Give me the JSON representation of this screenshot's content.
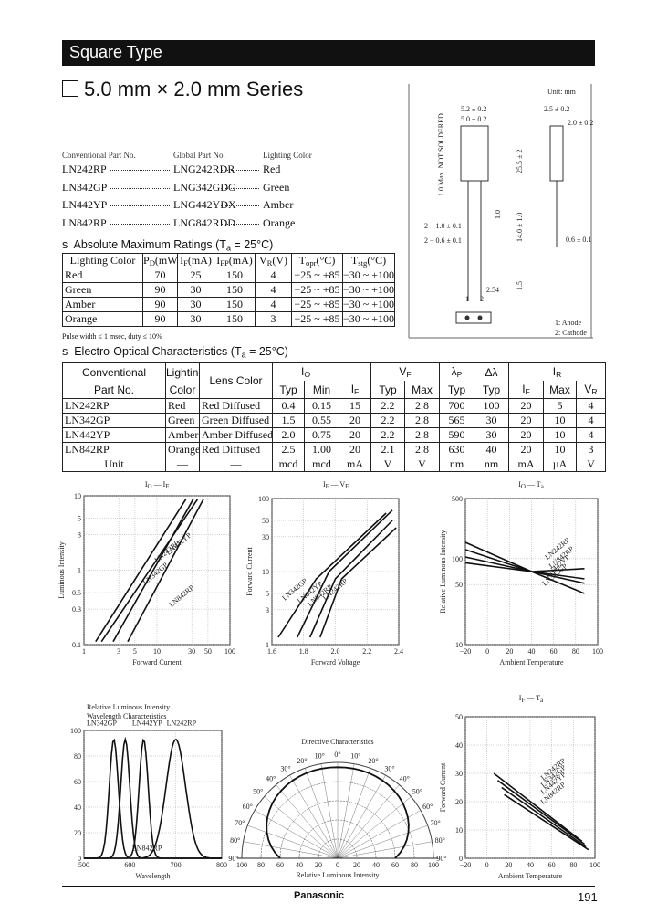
{
  "header": {
    "title": "Square Type"
  },
  "series_title": "5.0 mm × 2.0 mm Series",
  "part_list": {
    "headers": [
      "Conventional Part No.",
      "Global Part No.",
      "Lighting Color"
    ],
    "rows": [
      [
        "LN242RP",
        "LNG242RDR",
        "Red"
      ],
      [
        "LN342GP",
        "LNG342GDG",
        "Green"
      ],
      [
        "LN442YP",
        "LNG442YDX",
        "Amber"
      ],
      [
        "LN842RP",
        "LNG842RDD",
        "Orange"
      ]
    ]
  },
  "absolute_max": {
    "title": [
      {
        "text": "Absolute Maximum Ratings (T"
      },
      {
        "sub": "a"
      },
      {
        "text": " = 25°C)"
      }
    ],
    "headers": [
      [
        {
          "text": "Lighting Color"
        }
      ],
      [
        {
          "text": "P"
        },
        {
          "sub": "D"
        },
        {
          "text": "(mW)"
        }
      ],
      [
        {
          "text": "I"
        },
        {
          "sub": "F"
        },
        {
          "text": "(mA)"
        }
      ],
      [
        {
          "text": "I"
        },
        {
          "sub": "FP"
        },
        {
          "text": "(mA)"
        }
      ],
      [
        {
          "text": "V"
        },
        {
          "sub": "R"
        },
        {
          "text": "(V)"
        }
      ],
      [
        {
          "text": "T"
        },
        {
          "sub": "opr"
        },
        {
          "text": "(°C)"
        }
      ],
      [
        {
          "text": "T"
        },
        {
          "sub": "stg"
        },
        {
          "text": "(°C)"
        }
      ]
    ],
    "rows": [
      [
        "Red",
        "70",
        "25",
        "150",
        "4",
        "−25 ~ +85",
        "−30 ~ +100"
      ],
      [
        "Green",
        "90",
        "30",
        "150",
        "4",
        "−25 ~ +85",
        "−30 ~ +100"
      ],
      [
        "Amber",
        "90",
        "30",
        "150",
        "4",
        "−25 ~ +85",
        "−30 ~ +100"
      ],
      [
        "Orange",
        "90",
        "30",
        "150",
        "3",
        "−25 ~ +85",
        "−30 ~ +100"
      ]
    ],
    "note": "Pulse width ≤ 1 msec, duty ≤ 10%"
  },
  "electro_optical": {
    "title": [
      {
        "text": "Electro-Optical Characteristics (T"
      },
      {
        "sub": "a"
      },
      {
        "text": " = 25°C)"
      }
    ],
    "header_top": [
      [
        {
          "text": "Conventional"
        }
      ],
      [
        {
          "text": "Lighting"
        }
      ],
      [
        {
          "text": "Lens Color"
        }
      ],
      [
        {
          "text": "I"
        },
        {
          "sub": "O"
        }
      ],
      [
        {
          "text": "V"
        },
        {
          "sub": "F"
        }
      ],
      [
        {
          "text": "λ"
        },
        {
          "sub": "P"
        }
      ],
      [
        {
          "text": "Δλ"
        }
      ],
      [
        {
          "text": "I"
        },
        {
          "sub": "R"
        }
      ]
    ],
    "header_sub": [
      [
        {
          "text": "Part No."
        }
      ],
      [
        {
          "text": "Color"
        }
      ],
      [
        {
          "text": "Typ"
        }
      ],
      [
        {
          "text": "Min"
        }
      ],
      [
        {
          "text": "I"
        },
        {
          "sub": "F"
        }
      ],
      [
        {
          "text": "Typ"
        }
      ],
      [
        {
          "text": "Max"
        }
      ],
      [
        {
          "text": "Typ"
        }
      ],
      [
        {
          "text": "Typ"
        }
      ],
      [
        {
          "text": "I"
        },
        {
          "sub": "F"
        }
      ],
      [
        {
          "text": "Max"
        }
      ],
      [
        {
          "text": "V"
        },
        {
          "sub": "R"
        }
      ]
    ],
    "rows": [
      [
        "LN242RP",
        "Red",
        "Red Diffused",
        "0.4",
        "0.15",
        "15",
        "2.2",
        "2.8",
        "700",
        "100",
        "20",
        "5",
        "4"
      ],
      [
        "LN342GP",
        "Green",
        "Green Diffused",
        "1.5",
        "0.55",
        "20",
        "2.2",
        "2.8",
        "565",
        "30",
        "20",
        "10",
        "4"
      ],
      [
        "LN442YP",
        "Amber",
        "Amber Diffused",
        "2.0",
        "0.75",
        "20",
        "2.2",
        "2.8",
        "590",
        "30",
        "20",
        "10",
        "4"
      ],
      [
        "LN842RP",
        "Orange",
        "Red Diffused",
        "2.5",
        "1.00",
        "20",
        "2.1",
        "2.8",
        "630",
        "40",
        "20",
        "10",
        "3"
      ]
    ],
    "unit_row": [
      "Unit",
      "—",
      "—",
      "mcd",
      "mcd",
      "mA",
      "V",
      "V",
      "nm",
      "nm",
      "mA",
      "µA",
      "V"
    ]
  },
  "drawing": {
    "unit": "Unit: mm",
    "dims": [
      "5.2 ± 0.2",
      "5.0 ± 0.2",
      "2.5 ± 0.2",
      "2.0 ± 0.2",
      "1.0 Max. NOT SOLDERED",
      "25.5 ± 2",
      "14.0 ± 1.0",
      "1.0",
      "2 − 1.0 ± 0.1",
      "2 − 0.6 ± 0.1",
      "0.6 ± 0.1",
      "2.54",
      "1.5"
    ],
    "pins": [
      "1",
      "2"
    ],
    "legend": [
      "1: Anode",
      "2: Cathode"
    ]
  },
  "graphs": [
    {
      "title": [
        {
          "text": "I"
        },
        {
          "sub": "O"
        },
        {
          "text": " — I"
        },
        {
          "sub": "F"
        }
      ],
      "x_label": "Forward Current",
      "y_label": "Luminous Intensity",
      "xticks": [
        "1",
        "3",
        "5",
        "10",
        "30",
        "50",
        "100"
      ],
      "yticks": [
        "0.1",
        "0.3",
        "0.5",
        "1",
        "3",
        "5",
        "10"
      ],
      "xscale": "log",
      "yscale": "log",
      "curve_labels": [
        "LN242RP",
        "LN342GP",
        "LN442YP",
        "LN842RP"
      ]
    },
    {
      "title": [
        {
          "text": "I"
        },
        {
          "sub": "F"
        },
        {
          "text": " — V"
        },
        {
          "sub": "F"
        }
      ],
      "x_label": "Forward Voltage",
      "y_label": "Forward Current",
      "xticks": [
        "1.6",
        "1.8",
        "2.0",
        "2.2",
        "2.4"
      ],
      "yticks": [
        "1",
        "3",
        "5",
        "10",
        "30",
        "50",
        "100"
      ],
      "xscale": "linear",
      "yscale": "log",
      "curve_labels": [
        "LN342GP",
        "LN442YP",
        "LN842RP",
        "LN242RP"
      ]
    },
    {
      "title": [
        {
          "text": "I"
        },
        {
          "sub": "O"
        },
        {
          "text": " — T"
        },
        {
          "sub": "a"
        }
      ],
      "x_label": "Ambient Temperature",
      "y_label": "Relative Luminous Intensity",
      "xticks": [
        "−20",
        "0",
        "20",
        "40",
        "60",
        "80",
        "100"
      ],
      "yticks": [
        "10",
        "50",
        "100",
        "500"
      ],
      "xscale": "linear",
      "yscale": "log",
      "curve_labels": [
        "LN242RP",
        "LN842RP",
        "LN442YP",
        "LN342GP"
      ]
    },
    {
      "title": [
        {
          "text": "Relative Luminous Intensity"
        }
      ],
      "subtitle": "Wavelength Characteristics",
      "x_label": "Wavelength",
      "xticks": [
        "500",
        "600",
        "700",
        "800"
      ],
      "yticks": [
        "0",
        "20",
        "40",
        "60",
        "80",
        "100"
      ],
      "xscale": "linear",
      "yscale": "linear",
      "curve_labels": [
        "LN342GP",
        "LN442YP",
        "LN842RP",
        "LN242RP"
      ]
    },
    {
      "title": [
        {
          "text": "Directive Characteristics"
        }
      ],
      "x_label": "Relative Luminous Intensity",
      "xticks": [
        "100",
        "80",
        "60",
        "40",
        "20",
        "0",
        "20",
        "40",
        "60",
        "80",
        "100"
      ],
      "angle_labels": [
        "90°",
        "80°",
        "70°",
        "60°",
        "50°",
        "40°",
        "30°",
        "20°",
        "10°",
        "0°",
        "10°",
        "20°",
        "30°",
        "40°",
        "50°",
        "60°",
        "70°",
        "80°",
        "90°"
      ]
    },
    {
      "title": [
        {
          "text": "I"
        },
        {
          "sub": "F"
        },
        {
          "text": " — T"
        },
        {
          "sub": "a"
        }
      ],
      "x_label": "Ambient Temperature",
      "y_label": "Forward Current",
      "xticks": [
        "−20",
        "0",
        "20",
        "40",
        "60",
        "80",
        "100"
      ],
      "yticks": [
        "0",
        "10",
        "20",
        "30",
        "40",
        "50"
      ],
      "xscale": "linear",
      "yscale": "linear",
      "curve_labels": [
        "LN242RP",
        "LN342GP",
        "LN442YP",
        "LN842RP"
      ]
    }
  ],
  "footer": {
    "brand": "Panasonic",
    "page": "191"
  }
}
